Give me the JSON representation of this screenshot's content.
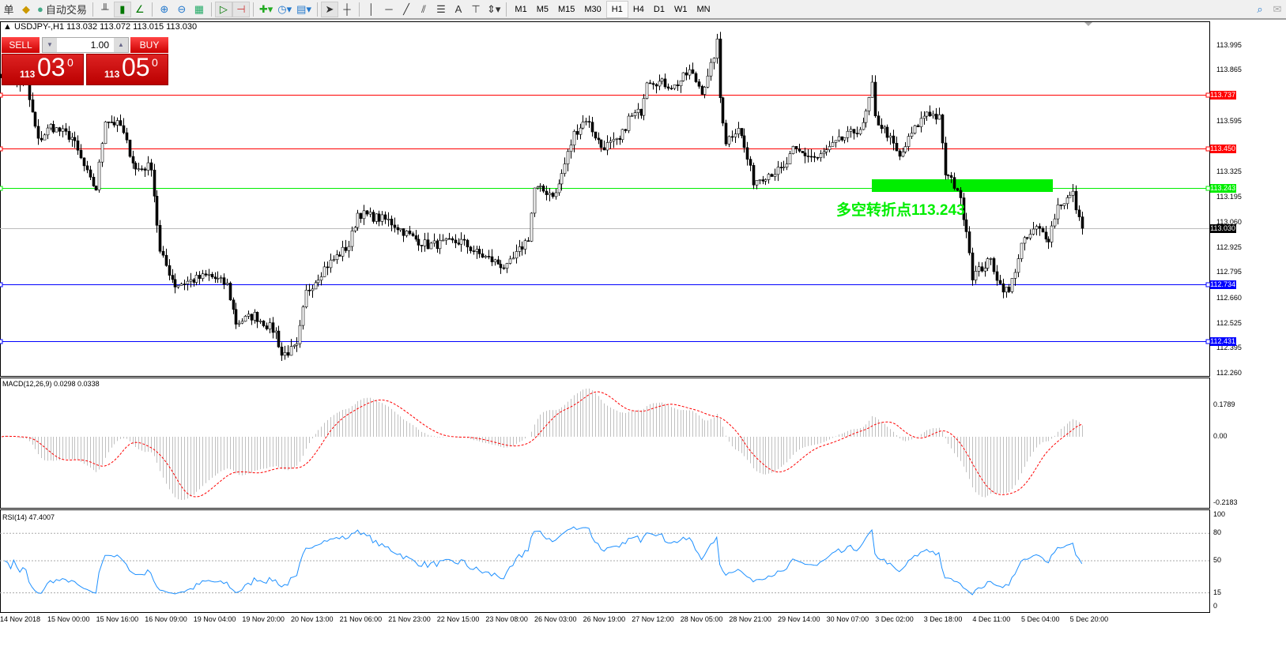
{
  "toolbar": {
    "menu_fragment": "单",
    "auto_trading_label": "自动交易",
    "icons": [
      "profile-icon",
      "auto-trading-icon",
      "bar-chart-icon",
      "candlestick-icon",
      "line-chart-icon",
      "zoom-in-icon",
      "zoom-out-icon",
      "tile-windows-icon",
      "auto-scroll-icon",
      "chart-shift-icon",
      "indicators-icon",
      "periods-icon",
      "templates-icon",
      "cursor-icon",
      "crosshair-icon",
      "vertical-line-icon",
      "horizontal-line-icon",
      "trendline-icon",
      "equidistant-channel-icon",
      "fibonacci-icon",
      "text-icon",
      "text-label-icon",
      "arrows-icon",
      "search-icon",
      "chat-icon"
    ],
    "timeframes": [
      "M1",
      "M5",
      "M15",
      "M30",
      "H1",
      "H4",
      "D1",
      "W1",
      "MN"
    ],
    "active_timeframe": "H1",
    "text_tool": "A"
  },
  "chart": {
    "title": "USDJPY-,H1  113.032 113.072 113.015 113.030",
    "sell_label": "SELL",
    "buy_label": "BUY",
    "lot": "1.00",
    "sell_price": {
      "small": "113",
      "large": "03",
      "sup": "0"
    },
    "buy_price": {
      "small": "113",
      "large": "05",
      "sup": "0"
    },
    "annotation": "多空转折点113.243",
    "annotation_color": "#00ee00",
    "price_ticks": [
      "113.995",
      "113.865",
      "113.595",
      "113.325",
      "113.195",
      "113.060",
      "112.925",
      "112.795",
      "112.660",
      "112.525",
      "112.395",
      "112.260"
    ],
    "levels": [
      {
        "label": "113.737",
        "value": 113.737,
        "color": "#ff0000"
      },
      {
        "label": "113.450",
        "value": 113.45,
        "color": "#ff0000"
      },
      {
        "label": "113.243",
        "value": 113.243,
        "color": "#00ee00"
      },
      {
        "label": "112.734",
        "value": 112.734,
        "color": "#0000ff"
      },
      {
        "label": "112.431",
        "value": 112.431,
        "color": "#0000ff"
      }
    ],
    "bid": {
      "label": "113.030",
      "value": 113.03
    },
    "time_labels": [
      "14 Nov 2018",
      "15 Nov 00:00",
      "15 Nov 16:00",
      "16 Nov 09:00",
      "19 Nov 04:00",
      "19 Nov 20:00",
      "20 Nov 13:00",
      "21 Nov 06:00",
      "21 Nov 23:00",
      "22 Nov 15:00",
      "23 Nov 08:00",
      "26 Nov 03:00",
      "26 Nov 19:00",
      "27 Nov 12:00",
      "28 Nov 05:00",
      "28 Nov 21:00",
      "29 Nov 14:00",
      "30 Nov 07:00",
      "3 Dec 02:00",
      "3 Dec 18:00",
      "4 Dec 11:00",
      "5 Dec 04:00",
      "5 Dec 20:00"
    ]
  },
  "macd": {
    "label": "MACD(12,26,9) 0.0298 0.0338",
    "ticks": [
      "0.1789",
      "0.00",
      "-0.2183"
    ],
    "hist_color": "#c0c0c0",
    "signal_color": "#ff0000"
  },
  "rsi": {
    "label": "RSI(14) 47.4007",
    "ticks": [
      "100",
      "80",
      "50",
      "15",
      "0"
    ],
    "levels": [
      80,
      50,
      15
    ],
    "color": "#1e90ff"
  },
  "chart_data": {
    "type": "candlestick",
    "timeframe": "H1",
    "price_range": [
      112.26,
      114.01
    ],
    "close_keypoints": [
      [
        0,
        113.85
      ],
      [
        8,
        113.78
      ],
      [
        12,
        113.49
      ],
      [
        16,
        113.57
      ],
      [
        23,
        113.51
      ],
      [
        29,
        113.28
      ],
      [
        31,
        113.24
      ],
      [
        34,
        113.61
      ],
      [
        39,
        113.57
      ],
      [
        44,
        113.34
      ],
      [
        49,
        113.36
      ],
      [
        52,
        112.9
      ],
      [
        57,
        112.73
      ],
      [
        68,
        112.78
      ],
      [
        74,
        112.73
      ],
      [
        77,
        112.53
      ],
      [
        83,
        112.57
      ],
      [
        90,
        112.48
      ],
      [
        92,
        112.36
      ],
      [
        97,
        112.4
      ],
      [
        100,
        112.69
      ],
      [
        106,
        112.82
      ],
      [
        114,
        112.94
      ],
      [
        117,
        113.11
      ],
      [
        127,
        113.07
      ],
      [
        135,
        112.98
      ],
      [
        140,
        112.94
      ],
      [
        151,
        112.96
      ],
      [
        156,
        112.9
      ],
      [
        166,
        112.82
      ],
      [
        173,
        112.98
      ],
      [
        175,
        113.24
      ],
      [
        182,
        113.21
      ],
      [
        188,
        113.53
      ],
      [
        192,
        113.61
      ],
      [
        197,
        113.46
      ],
      [
        203,
        113.49
      ],
      [
        206,
        113.61
      ],
      [
        210,
        113.65
      ],
      [
        212,
        113.82
      ],
      [
        221,
        113.78
      ],
      [
        226,
        113.86
      ],
      [
        230,
        113.76
      ],
      [
        232,
        113.82
      ],
      [
        235,
        114.01
      ],
      [
        236,
        113.72
      ],
      [
        238,
        113.49
      ],
      [
        242,
        113.57
      ],
      [
        247,
        113.28
      ],
      [
        252,
        113.32
      ],
      [
        257,
        113.34
      ],
      [
        260,
        113.44
      ],
      [
        268,
        113.4
      ],
      [
        275,
        113.49
      ],
      [
        283,
        113.57
      ],
      [
        286,
        113.78
      ],
      [
        287,
        113.61
      ],
      [
        291,
        113.53
      ],
      [
        295,
        113.4
      ],
      [
        299,
        113.53
      ],
      [
        304,
        113.65
      ],
      [
        308,
        113.61
      ],
      [
        310,
        113.32
      ],
      [
        314,
        113.24
      ],
      [
        317,
        113.03
      ],
      [
        319,
        112.78
      ],
      [
        325,
        112.86
      ],
      [
        328,
        112.73
      ],
      [
        331,
        112.69
      ],
      [
        335,
        112.94
      ],
      [
        340,
        113.03
      ],
      [
        344,
        112.98
      ],
      [
        347,
        113.15
      ],
      [
        352,
        113.21
      ],
      [
        354,
        113.07
      ],
      [
        355,
        113.03
      ]
    ]
  }
}
